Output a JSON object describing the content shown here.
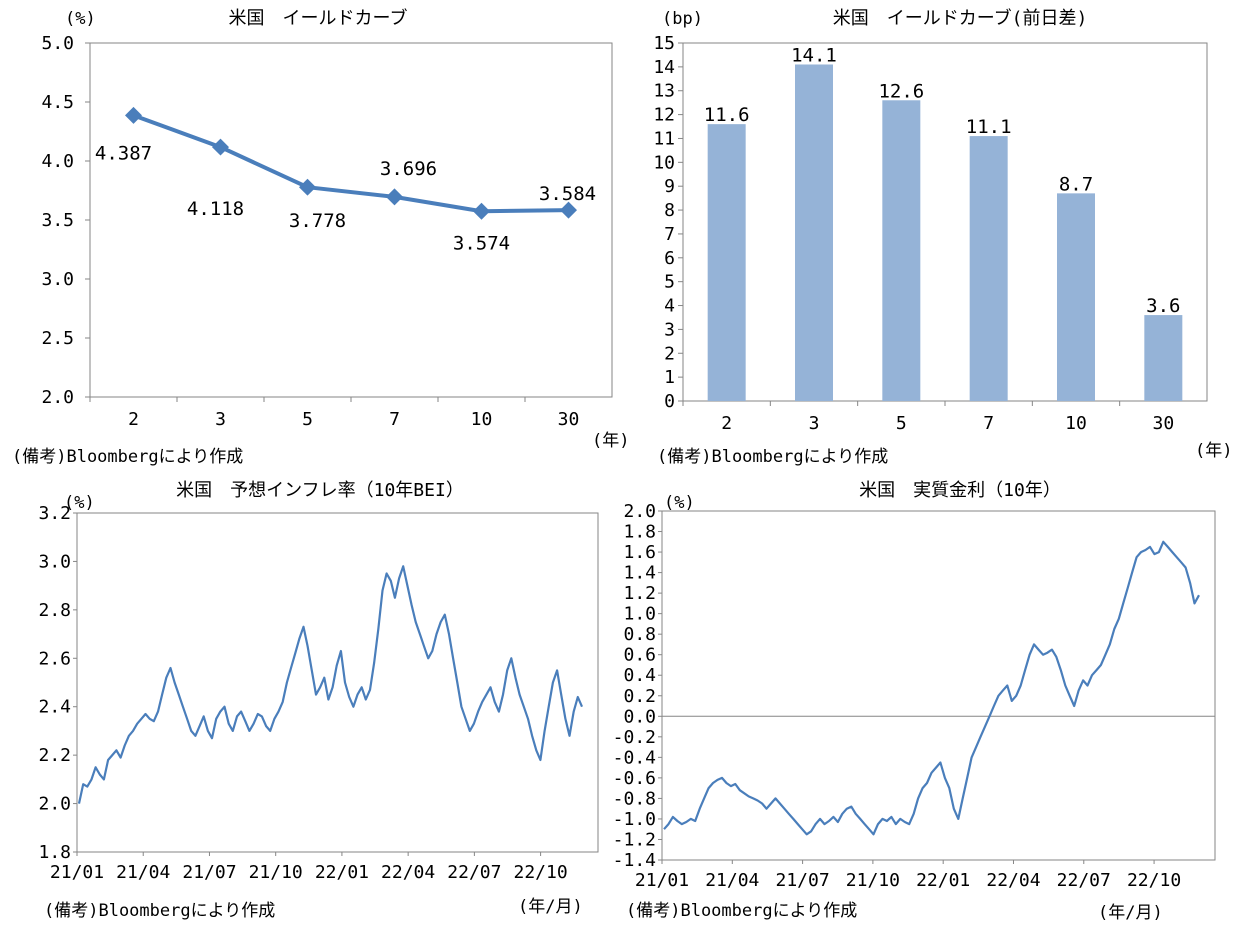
{
  "chart_data": [
    {
      "id": "yield_curve",
      "type": "line",
      "title": "米国　イールドカーブ",
      "y_unit": "(%)",
      "x_unit": "(年)",
      "note": "(備考)Bloombergにより作成",
      "categories": [
        "2",
        "3",
        "5",
        "7",
        "10",
        "30"
      ],
      "values": [
        4.387,
        4.118,
        3.778,
        3.696,
        3.574,
        3.584
      ],
      "value_labels": [
        "4.387",
        "4.118",
        "3.778",
        "3.696",
        "3.574",
        "3.584"
      ],
      "ylim": [
        2.0,
        5.0
      ],
      "y_ticks": [
        "2.0",
        "2.5",
        "3.0",
        "3.5",
        "4.0",
        "4.5",
        "5.0"
      ],
      "color": "#4a7ebb"
    },
    {
      "id": "yield_change",
      "type": "bar",
      "title": "米国　イールドカーブ(前日差)",
      "y_unit": "(bp)",
      "x_unit": "(年)",
      "note": "(備考)Bloombergにより作成",
      "categories": [
        "2",
        "3",
        "5",
        "7",
        "10",
        "30"
      ],
      "values": [
        11.6,
        14.1,
        12.6,
        11.1,
        8.7,
        3.6
      ],
      "value_labels": [
        "11.6",
        "14.1",
        "12.6",
        "11.1",
        "8.7",
        "3.6"
      ],
      "ylim": [
        0,
        15
      ],
      "y_ticks": [
        "0",
        "1",
        "2",
        "3",
        "4",
        "5",
        "6",
        "7",
        "8",
        "9",
        "10",
        "11",
        "12",
        "13",
        "14",
        "15"
      ],
      "color": "#95b3d7"
    },
    {
      "id": "bei",
      "type": "line",
      "title": "米国　予想インフレ率（10年BEI）",
      "y_unit": "(%)",
      "x_unit": "(年/月)",
      "note": "(備考)Bloombergにより作成",
      "x_ticks": [
        "21/01",
        "21/04",
        "21/07",
        "21/10",
        "22/01",
        "22/04",
        "22/07",
        "22/10"
      ],
      "ylim": [
        1.8,
        3.2
      ],
      "y_ticks": [
        "1.8",
        "2.0",
        "2.2",
        "2.4",
        "2.6",
        "2.8",
        "3.0",
        "3.2"
      ],
      "series_start": "21/01",
      "series_end": "22/12",
      "values": [
        2.0,
        2.08,
        2.07,
        2.1,
        2.15,
        2.12,
        2.1,
        2.18,
        2.2,
        2.22,
        2.19,
        2.24,
        2.28,
        2.3,
        2.33,
        2.35,
        2.37,
        2.35,
        2.34,
        2.38,
        2.45,
        2.52,
        2.56,
        2.5,
        2.45,
        2.4,
        2.35,
        2.3,
        2.28,
        2.32,
        2.36,
        2.3,
        2.27,
        2.35,
        2.38,
        2.4,
        2.33,
        2.3,
        2.36,
        2.38,
        2.34,
        2.3,
        2.33,
        2.37,
        2.36,
        2.32,
        2.3,
        2.35,
        2.38,
        2.42,
        2.5,
        2.56,
        2.62,
        2.68,
        2.73,
        2.65,
        2.55,
        2.45,
        2.48,
        2.52,
        2.43,
        2.48,
        2.57,
        2.63,
        2.5,
        2.44,
        2.4,
        2.45,
        2.48,
        2.43,
        2.47,
        2.58,
        2.72,
        2.88,
        2.95,
        2.92,
        2.85,
        2.93,
        2.98,
        2.9,
        2.82,
        2.75,
        2.7,
        2.65,
        2.6,
        2.63,
        2.7,
        2.75,
        2.78,
        2.7,
        2.6,
        2.5,
        2.4,
        2.35,
        2.3,
        2.33,
        2.38,
        2.42,
        2.45,
        2.48,
        2.42,
        2.38,
        2.45,
        2.55,
        2.6,
        2.52,
        2.45,
        2.4,
        2.35,
        2.28,
        2.22,
        2.18,
        2.3,
        2.4,
        2.5,
        2.55,
        2.45,
        2.35,
        2.28,
        2.38,
        2.44,
        2.4
      ]
    },
    {
      "id": "real_rate",
      "type": "line",
      "title": "米国　実質金利（10年）",
      "y_unit": "(%)",
      "x_unit": "(年/月)",
      "note": "(備考)Bloombergにより作成",
      "x_ticks": [
        "21/01",
        "21/04",
        "21/07",
        "21/10",
        "22/01",
        "22/04",
        "22/07",
        "22/10"
      ],
      "ylim": [
        -1.4,
        2.0
      ],
      "y_ticks": [
        "-1.4",
        "-1.2",
        "-1.0",
        "-0.8",
        "-0.6",
        "-0.4",
        "-0.2",
        "0.0",
        "0.2",
        "0.4",
        "0.6",
        "0.8",
        "1.0",
        "1.2",
        "1.4",
        "1.6",
        "1.8",
        "2.0"
      ],
      "series_start": "21/01",
      "series_end": "22/12",
      "values": [
        -1.1,
        -1.05,
        -0.98,
        -1.02,
        -1.05,
        -1.03,
        -1.0,
        -1.02,
        -0.9,
        -0.8,
        -0.7,
        -0.65,
        -0.62,
        -0.6,
        -0.65,
        -0.68,
        -0.66,
        -0.72,
        -0.75,
        -0.78,
        -0.8,
        -0.82,
        -0.85,
        -0.9,
        -0.85,
        -0.8,
        -0.85,
        -0.9,
        -0.95,
        -1.0,
        -1.05,
        -1.1,
        -1.15,
        -1.12,
        -1.05,
        -1.0,
        -1.05,
        -1.02,
        -0.98,
        -1.03,
        -0.95,
        -0.9,
        -0.88,
        -0.95,
        -1.0,
        -1.05,
        -1.1,
        -1.15,
        -1.05,
        -1.0,
        -1.02,
        -0.98,
        -1.05,
        -1.0,
        -1.03,
        -1.05,
        -0.95,
        -0.8,
        -0.7,
        -0.65,
        -0.55,
        -0.5,
        -0.45,
        -0.6,
        -0.7,
        -0.9,
        -1.0,
        -0.8,
        -0.6,
        -0.4,
        -0.3,
        -0.2,
        -0.1,
        0.0,
        0.1,
        0.2,
        0.25,
        0.3,
        0.15,
        0.2,
        0.3,
        0.45,
        0.6,
        0.7,
        0.65,
        0.6,
        0.62,
        0.65,
        0.58,
        0.45,
        0.3,
        0.2,
        0.1,
        0.25,
        0.35,
        0.3,
        0.4,
        0.45,
        0.5,
        0.6,
        0.7,
        0.85,
        0.95,
        1.1,
        1.25,
        1.4,
        1.55,
        1.6,
        1.62,
        1.65,
        1.58,
        1.6,
        1.7,
        1.65,
        1.6,
        1.55,
        1.5,
        1.45,
        1.3,
        1.1,
        1.18
      ]
    }
  ]
}
